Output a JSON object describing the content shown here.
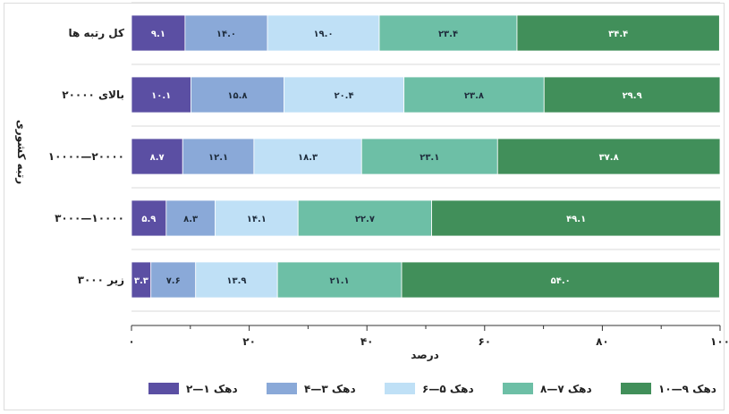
{
  "chart_data": {
    "type": "bar",
    "orientation": "horizontal",
    "stacked": true,
    "title": "",
    "xlabel": "درصد",
    "ylabel": "رتبه کشوری",
    "xlim": [
      0,
      100
    ],
    "xticks": [
      {
        "value": 0,
        "label": "۰"
      },
      {
        "value": 20,
        "label": "۲۰"
      },
      {
        "value": 40,
        "label": "۴۰"
      },
      {
        "value": 60,
        "label": "۶۰"
      },
      {
        "value": 80,
        "label": "۸۰"
      },
      {
        "value": 100,
        "label": "۱۰۰"
      }
    ],
    "grid": true,
    "legend": "bottom",
    "categories": [
      "کل رتبه ها",
      "بالای ۲۰۰۰۰",
      "۱۰۰۰۰—۲۰۰۰۰",
      "۳۰۰۰—۱۰۰۰۰",
      "زیر ۳۰۰۰"
    ],
    "series": [
      {
        "name": "دهک ۱—۲",
        "color": "#5b4fa3",
        "values": [
          9.1,
          10.1,
          8.7,
          5.9,
          3.3
        ],
        "labels": [
          "۹.۱",
          "۱۰.۱",
          "۸.۷",
          "۵.۹",
          "۳.۳"
        ]
      },
      {
        "name": "دهک ۳—۴",
        "color": "#8aa9d8",
        "values": [
          14.0,
          15.8,
          12.1,
          8.3,
          7.6
        ],
        "labels": [
          "۱۴.۰",
          "۱۵.۸",
          "۱۲.۱",
          "۸.۳",
          "۷.۶"
        ]
      },
      {
        "name": "دهک ۵—۶",
        "color": "#bfe0f6",
        "values": [
          19.0,
          20.4,
          18.3,
          14.1,
          13.9
        ],
        "labels": [
          "۱۹.۰",
          "۲۰.۴",
          "۱۸.۳",
          "۱۴.۱",
          "۱۳.۹"
        ]
      },
      {
        "name": "دهک ۷—۸",
        "color": "#6dbfa6",
        "values": [
          23.4,
          23.8,
          23.1,
          22.7,
          21.1
        ],
        "labels": [
          "۲۳.۴",
          "۲۳.۸",
          "۲۳.۱",
          "۲۲.۷",
          "۲۱.۱"
        ]
      },
      {
        "name": "دهک ۹—۱۰",
        "color": "#418f5a",
        "values": [
          34.4,
          29.9,
          37.8,
          49.1,
          54.0
        ],
        "labels": [
          "۳۴.۴",
          "۲۹.۹",
          "۳۷.۸",
          "۴۹.۱",
          "۵۴.۰"
        ]
      }
    ]
  }
}
